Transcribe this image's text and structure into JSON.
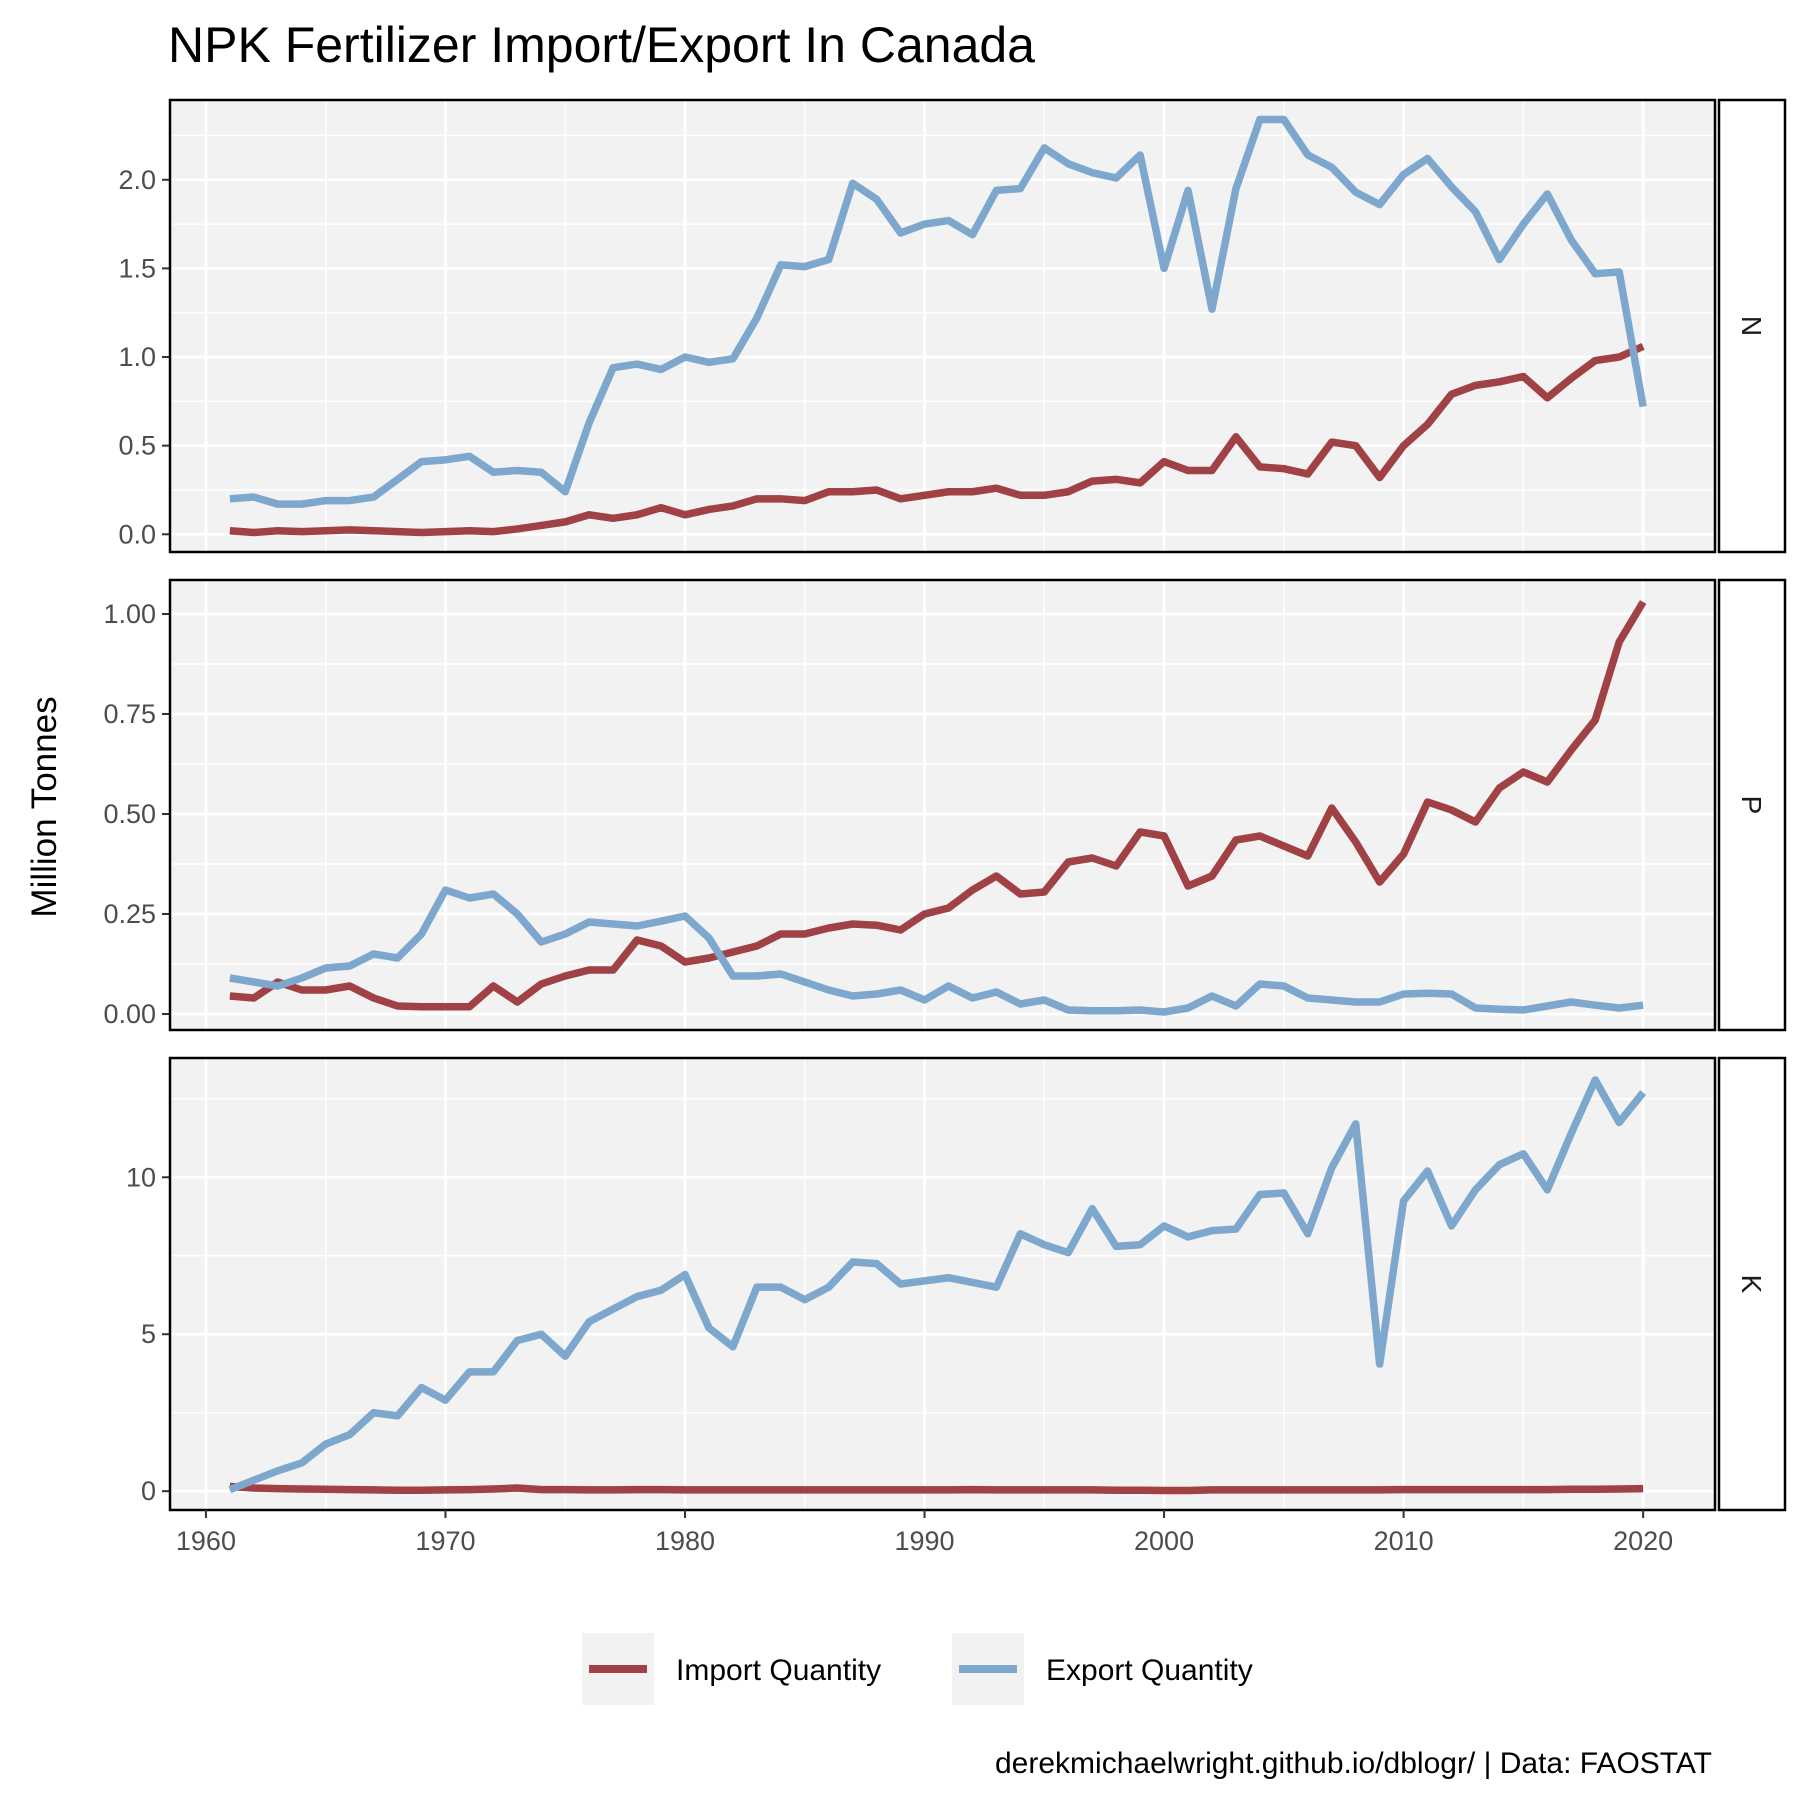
{
  "chart_data": {
    "type": "line",
    "title": "NPK Fertilizer Import/Export In Canada",
    "ylabel": "Million Tonnes",
    "xlabel": "",
    "caption": "derekmichaelwright.github.io/dblogr/ | Data: FAOSTAT",
    "x_ticks": [
      "1960",
      "1970",
      "1980",
      "1990",
      "2000",
      "2010",
      "2020"
    ],
    "x_tick_values": [
      1960,
      1970,
      1980,
      1990,
      2000,
      2010,
      2020
    ],
    "x_range": [
      1958.5,
      2023
    ],
    "legend_position": "bottom",
    "legend": [
      {
        "label": "Import Quantity",
        "color": "#a04146"
      },
      {
        "label": "Export Quantity",
        "color": "#7da7cc"
      }
    ],
    "colors": {
      "import": "#a04146",
      "export": "#7da7cc",
      "panel": "#f2f2f2",
      "grid": "#ffffff",
      "border": "#000000"
    },
    "years": [
      1961,
      1962,
      1963,
      1964,
      1965,
      1966,
      1967,
      1968,
      1969,
      1970,
      1971,
      1972,
      1973,
      1974,
      1975,
      1976,
      1977,
      1978,
      1979,
      1980,
      1981,
      1982,
      1983,
      1984,
      1985,
      1986,
      1987,
      1988,
      1989,
      1990,
      1991,
      1992,
      1993,
      1994,
      1995,
      1996,
      1997,
      1998,
      1999,
      2000,
      2001,
      2002,
      2003,
      2004,
      2005,
      2006,
      2007,
      2008,
      2009,
      2010,
      2011,
      2012,
      2013,
      2014,
      2015,
      2016,
      2017,
      2018,
      2019,
      2020
    ],
    "panels": [
      {
        "strip": "N",
        "ylim": [
          -0.1,
          2.45
        ],
        "y_ticks": [
          "0.0",
          "0.5",
          "1.0",
          "1.5",
          "2.0"
        ],
        "y_tick_values": [
          0,
          0.5,
          1.0,
          1.5,
          2.0
        ],
        "series": [
          {
            "name": "Import Quantity",
            "values": [
              0.02,
              0.01,
              0.02,
              0.015,
              0.02,
              0.025,
              0.02,
              0.015,
              0.01,
              0.015,
              0.02,
              0.015,
              0.03,
              0.05,
              0.07,
              0.11,
              0.09,
              0.11,
              0.15,
              0.11,
              0.14,
              0.16,
              0.2,
              0.2,
              0.19,
              0.24,
              0.24,
              0.25,
              0.2,
              0.22,
              0.24,
              0.24,
              0.26,
              0.22,
              0.22,
              0.24,
              0.3,
              0.31,
              0.29,
              0.41,
              0.36,
              0.36,
              0.55,
              0.38,
              0.37,
              0.34,
              0.52,
              0.5,
              0.32,
              0.5,
              0.62,
              0.79,
              0.84,
              0.86,
              0.89,
              0.77,
              0.88,
              0.98,
              1.0,
              1.06
            ]
          },
          {
            "name": "Export Quantity",
            "values": [
              0.2,
              0.21,
              0.17,
              0.17,
              0.19,
              0.19,
              0.21,
              0.31,
              0.41,
              0.42,
              0.44,
              0.35,
              0.36,
              0.35,
              0.24,
              0.63,
              0.94,
              0.96,
              0.93,
              1.0,
              0.97,
              0.99,
              1.22,
              1.52,
              1.51,
              1.55,
              1.98,
              1.89,
              1.7,
              1.75,
              1.77,
              1.69,
              1.94,
              1.95,
              2.18,
              2.09,
              2.04,
              2.01,
              2.14,
              1.5,
              1.94,
              1.27,
              1.95,
              2.34,
              2.34,
              2.14,
              2.07,
              1.93,
              1.86,
              2.03,
              2.12,
              1.96,
              1.82,
              1.55,
              1.75,
              1.92,
              1.66,
              1.47,
              1.48,
              0.72
            ]
          }
        ]
      },
      {
        "strip": "P",
        "ylim": [
          -0.04,
          1.085
        ],
        "y_ticks": [
          "0.00",
          "0.25",
          "0.50",
          "0.75",
          "1.00"
        ],
        "y_tick_values": [
          0,
          0.25,
          0.5,
          0.75,
          1.0
        ],
        "series": [
          {
            "name": "Import Quantity",
            "values": [
              0.045,
              0.04,
              0.08,
              0.06,
              0.06,
              0.07,
              0.04,
              0.02,
              0.018,
              0.018,
              0.018,
              0.07,
              0.03,
              0.075,
              0.095,
              0.11,
              0.11,
              0.185,
              0.17,
              0.13,
              0.14,
              0.155,
              0.17,
              0.2,
              0.2,
              0.215,
              0.225,
              0.222,
              0.21,
              0.25,
              0.265,
              0.31,
              0.345,
              0.3,
              0.305,
              0.38,
              0.39,
              0.37,
              0.455,
              0.445,
              0.32,
              0.345,
              0.435,
              0.445,
              0.42,
              0.395,
              0.515,
              0.43,
              0.33,
              0.4,
              0.53,
              0.51,
              0.48,
              0.565,
              0.605,
              0.58,
              0.66,
              0.735,
              0.93,
              1.03
            ]
          },
          {
            "name": "Export Quantity",
            "values": [
              0.09,
              0.08,
              0.07,
              0.09,
              0.115,
              0.12,
              0.15,
              0.14,
              0.2,
              0.31,
              0.29,
              0.3,
              0.25,
              0.18,
              0.2,
              0.23,
              0.225,
              0.22,
              0.232,
              0.245,
              0.19,
              0.095,
              0.095,
              0.1,
              0.08,
              0.06,
              0.045,
              0.05,
              0.06,
              0.035,
              0.07,
              0.04,
              0.055,
              0.025,
              0.035,
              0.01,
              0.008,
              0.008,
              0.01,
              0.005,
              0.015,
              0.045,
              0.02,
              0.075,
              0.07,
              0.04,
              0.035,
              0.03,
              0.03,
              0.05,
              0.052,
              0.05,
              0.015,
              0.012,
              0.01,
              0.02,
              0.03,
              0.022,
              0.015,
              0.022
            ]
          }
        ]
      },
      {
        "strip": "K",
        "ylim": [
          -0.6,
          13.8
        ],
        "y_ticks": [
          "0",
          "5",
          "10"
        ],
        "y_tick_values": [
          0,
          5,
          10
        ],
        "series": [
          {
            "name": "Import Quantity",
            "values": [
              0.15,
              0.1,
              0.08,
              0.07,
              0.06,
              0.05,
              0.04,
              0.03,
              0.03,
              0.04,
              0.05,
              0.07,
              0.1,
              0.05,
              0.05,
              0.04,
              0.04,
              0.05,
              0.05,
              0.04,
              0.04,
              0.04,
              0.04,
              0.04,
              0.04,
              0.04,
              0.04,
              0.04,
              0.04,
              0.04,
              0.04,
              0.05,
              0.04,
              0.04,
              0.04,
              0.04,
              0.04,
              0.03,
              0.03,
              0.02,
              0.02,
              0.04,
              0.04,
              0.04,
              0.04,
              0.04,
              0.04,
              0.04,
              0.04,
              0.05,
              0.05,
              0.05,
              0.05,
              0.05,
              0.05,
              0.05,
              0.06,
              0.06,
              0.07,
              0.08
            ]
          },
          {
            "name": "Export Quantity",
            "values": [
              0.05,
              0.35,
              0.65,
              0.9,
              1.5,
              1.8,
              2.5,
              2.4,
              3.3,
              2.9,
              3.8,
              3.8,
              4.8,
              5.0,
              4.3,
              5.4,
              5.8,
              6.2,
              6.4,
              6.9,
              5.2,
              4.6,
              6.5,
              6.5,
              6.1,
              6.5,
              7.3,
              7.25,
              6.6,
              6.7,
              6.8,
              6.65,
              6.5,
              8.2,
              7.85,
              7.6,
              9.0,
              7.8,
              7.85,
              8.45,
              8.1,
              8.3,
              8.35,
              9.45,
              9.5,
              8.2,
              10.3,
              11.7,
              4.05,
              9.25,
              10.2,
              8.45,
              9.6,
              10.4,
              10.75,
              9.6,
              11.4,
              13.1,
              11.75,
              12.7
            ]
          }
        ]
      }
    ]
  }
}
